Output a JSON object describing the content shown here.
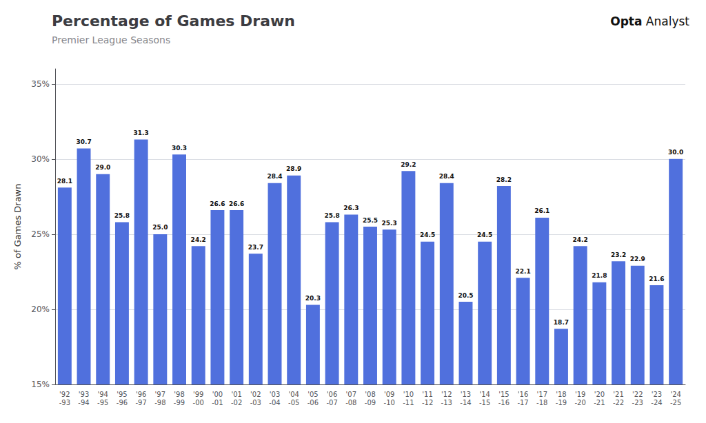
{
  "chart_data": {
    "type": "bar",
    "title": "Percentage of Games Drawn",
    "subtitle": "Premier League Seasons",
    "ylabel": "% of Games Drawn",
    "categories": [
      "'92\n-93",
      "'93\n-94",
      "'94\n-95",
      "'95\n-96",
      "'96\n-97",
      "'97\n-98",
      "'98\n-99",
      "'99\n-00",
      "'00\n-01",
      "'01\n-02",
      "'02\n-03",
      "'03\n-04",
      "'04\n-05",
      "'05\n-06",
      "'06\n-07",
      "'07\n-08",
      "'08\n-09",
      "'09\n-10",
      "'10\n-11",
      "'11\n-12",
      "'12\n-13",
      "'13\n-14",
      "'14\n-15",
      "'15\n-16",
      "'16\n-17",
      "'17\n-18",
      "'18\n-19",
      "'19\n-20",
      "'20\n-21",
      "'21\n-22",
      "'22\n-23",
      "'23\n-24",
      "'24\n-25"
    ],
    "values": [
      28.1,
      30.7,
      29.0,
      25.8,
      31.3,
      25.0,
      30.3,
      24.2,
      26.6,
      26.6,
      23.7,
      28.4,
      28.9,
      20.3,
      25.8,
      26.3,
      25.5,
      25.3,
      29.2,
      24.5,
      28.4,
      20.5,
      24.5,
      28.2,
      22.1,
      26.1,
      18.7,
      24.2,
      21.8,
      23.2,
      22.9,
      21.6,
      30.0
    ],
    "value_labels": [
      "28.1",
      "30.7",
      "29.0",
      "25.8",
      "31.3",
      "25.0",
      "30.3",
      "24.2",
      "26.6",
      "26.6",
      "23.7",
      "28.4",
      "28.9",
      "20.3",
      "25.8",
      "26.3",
      "25.5",
      "25.3",
      "29.2",
      "24.5",
      "28.4",
      "20.5",
      "24.5",
      "28.2",
      "22.1",
      "26.1",
      "18.7",
      "24.2",
      "21.8",
      "23.2",
      "22.9",
      "21.6",
      "30.0"
    ],
    "data_labels": true,
    "ylim": [
      15,
      36
    ],
    "yticks": [
      {
        "value": 15,
        "label": "15%"
      },
      {
        "value": 20,
        "label": "20%"
      },
      {
        "value": 25,
        "label": "25%"
      },
      {
        "value": 30,
        "label": "30%"
      },
      {
        "value": 35,
        "label": "35%"
      }
    ],
    "grid": true,
    "annotations": [
      "Opta",
      "Analyst"
    ]
  }
}
